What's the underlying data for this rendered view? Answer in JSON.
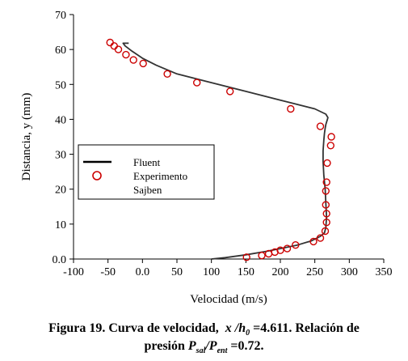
{
  "chart_data": {
    "type": "scatter",
    "xlabel": "Velocidad (m/s)",
    "ylabel": "Distancia, y (mm)",
    "xlim": [
      -100,
      350
    ],
    "ylim": [
      0,
      70
    ],
    "xticks": [
      "-100",
      "-50",
      "0.0",
      "50",
      "100",
      "150",
      "200",
      "250",
      "300",
      "350"
    ],
    "yticks": [
      "0.0",
      "10",
      "20",
      "30",
      "40",
      "50",
      "60",
      "70"
    ],
    "legend_placement": "center-left",
    "grid": false,
    "series": [
      {
        "name": "Fluent",
        "kind": "line",
        "color": "#333333",
        "x": [
          100,
          120,
          150,
          180,
          200,
          225,
          245,
          258,
          264,
          266,
          267,
          266,
          265,
          263,
          262,
          262,
          263,
          264,
          265,
          266,
          267,
          268,
          269,
          266,
          250,
          200,
          150,
          100,
          50,
          20,
          0,
          -15,
          -25,
          -28,
          -20
        ],
        "y": [
          0,
          0.4,
          1.2,
          2.2,
          3.0,
          4.0,
          5.2,
          6.5,
          7.5,
          9.0,
          12.0,
          16.0,
          20.0,
          24.0,
          28.0,
          31.0,
          34.0,
          36.0,
          37.5,
          38.5,
          39.2,
          39.8,
          40.5,
          41.5,
          43.0,
          45.5,
          48.0,
          50.5,
          53.0,
          55.5,
          57.5,
          59.5,
          61.0,
          61.8,
          61.8
        ]
      },
      {
        "name": "Experimento",
        "kind": "marker",
        "color": "#cc0000",
        "x": [
          151,
          173,
          183,
          192,
          200,
          210,
          222,
          248,
          258,
          265,
          267,
          267,
          266,
          266,
          267,
          268,
          273,
          274,
          258,
          215,
          127,
          79,
          36,
          1,
          -13,
          -24,
          -35,
          -41,
          -47
        ],
        "y": [
          0.5,
          1.0,
          1.5,
          2.0,
          2.5,
          3.0,
          4.0,
          5.0,
          6.0,
          8.0,
          10.5,
          13.0,
          15.5,
          19.5,
          22.0,
          27.5,
          32.5,
          35.0,
          38.0,
          43.0,
          48.0,
          50.5,
          53.0,
          56.0,
          57.0,
          58.5,
          60.0,
          61.0,
          62.0
        ]
      }
    ],
    "legend": [
      "Fluent",
      "Experimento",
      "Sajben"
    ]
  },
  "caption": {
    "line1_prefix": "Figura 19. Curva de velocidad,",
    "xh": "x /h",
    "xh_sub": "0",
    "line1_suffix": "=4.611. Relación de",
    "line2_prefix": "presión",
    "p1": "P",
    "p1_sub": "sal",
    "p2": "P",
    "p2_sub": "ent",
    "line2_suffix": "=0.72."
  }
}
